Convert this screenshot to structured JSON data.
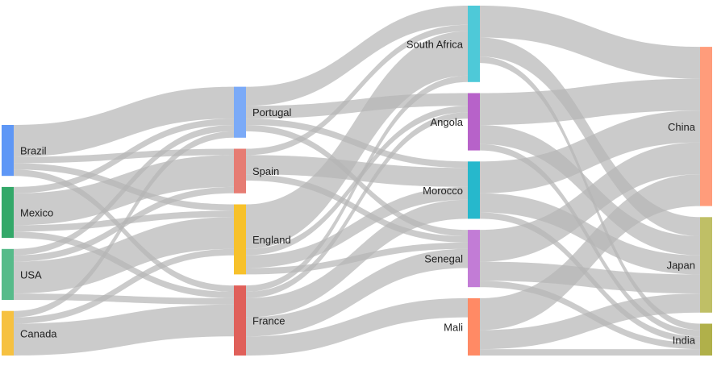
{
  "chart_data": {
    "type": "sankey",
    "link_color": "#b5b5b5",
    "columns": [
      [
        "Brazil",
        "Mexico",
        "USA",
        "Canada"
      ],
      [
        "Portugal",
        "Spain",
        "England",
        "France"
      ],
      [
        "South Africa",
        "Angola",
        "Morocco",
        "Senegal",
        "Mali"
      ],
      [
        "China",
        "Japan",
        "India"
      ]
    ],
    "node_colors": {
      "Brazil": "#5e97f6",
      "Mexico": "#33a869",
      "USA": "#57bb8a",
      "Canada": "#f6c141",
      "Portugal": "#7baaf7",
      "Spain": "#e67c73",
      "England": "#f7c12b",
      "France": "#e0605a",
      "South Africa": "#4ec9d8",
      "Angola": "#b762c9",
      "Morocco": "#26b8cc",
      "Senegal": "#c27cd6",
      "Mali": "#ff8a65",
      "China": "#ff9c7b",
      "Japan": "#bfbf66",
      "India": "#b0b04a"
    },
    "links": [
      [
        "Brazil",
        "Portugal",
        5
      ],
      [
        "Brazil",
        "France",
        1
      ],
      [
        "Brazil",
        "Spain",
        1
      ],
      [
        "Brazil",
        "England",
        1
      ],
      [
        "Canada",
        "Portugal",
        1
      ],
      [
        "Canada",
        "France",
        5
      ],
      [
        "Canada",
        "England",
        1
      ],
      [
        "Mexico",
        "Portugal",
        1
      ],
      [
        "Mexico",
        "France",
        1
      ],
      [
        "Mexico",
        "Spain",
        5
      ],
      [
        "Mexico",
        "England",
        1
      ],
      [
        "USA",
        "Portugal",
        1
      ],
      [
        "USA",
        "France",
        1
      ],
      [
        "USA",
        "Spain",
        1
      ],
      [
        "USA",
        "England",
        5
      ],
      [
        "Portugal",
        "Angola",
        2
      ],
      [
        "Portugal",
        "Senegal",
        1
      ],
      [
        "Portugal",
        "Morocco",
        1
      ],
      [
        "Portugal",
        "South Africa",
        3
      ],
      [
        "France",
        "Angola",
        1
      ],
      [
        "France",
        "Senegal",
        3
      ],
      [
        "France",
        "Mali",
        3
      ],
      [
        "France",
        "Morocco",
        3
      ],
      [
        "France",
        "South Africa",
        1
      ],
      [
        "Spain",
        "Senegal",
        1
      ],
      [
        "Spain",
        "Morocco",
        3
      ],
      [
        "Spain",
        "South Africa",
        1
      ],
      [
        "England",
        "Angola",
        1
      ],
      [
        "England",
        "Senegal",
        1
      ],
      [
        "England",
        "Morocco",
        2
      ],
      [
        "England",
        "South Africa",
        7
      ],
      [
        "South Africa",
        "China",
        5
      ],
      [
        "South Africa",
        "India",
        1
      ],
      [
        "South Africa",
        "Japan",
        3
      ],
      [
        "Angola",
        "China",
        5
      ],
      [
        "Angola",
        "India",
        1
      ],
      [
        "Angola",
        "Japan",
        3
      ],
      [
        "Senegal",
        "China",
        5
      ],
      [
        "Senegal",
        "India",
        1
      ],
      [
        "Senegal",
        "Japan",
        3
      ],
      [
        "Mali",
        "China",
        5
      ],
      [
        "Mali",
        "India",
        1
      ],
      [
        "Mali",
        "Japan",
        3
      ],
      [
        "Morocco",
        "China",
        5
      ],
      [
        "Morocco",
        "India",
        1
      ],
      [
        "Morocco",
        "Japan",
        3
      ]
    ]
  }
}
